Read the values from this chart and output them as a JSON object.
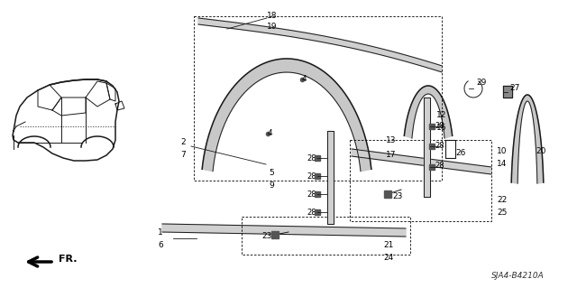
{
  "bg_color": "#ffffff",
  "line_color": "#1a1a1a",
  "diagram_ref": "SJA4-B4210A",
  "figsize": [
    6.4,
    3.19
  ],
  "dpi": 100
}
